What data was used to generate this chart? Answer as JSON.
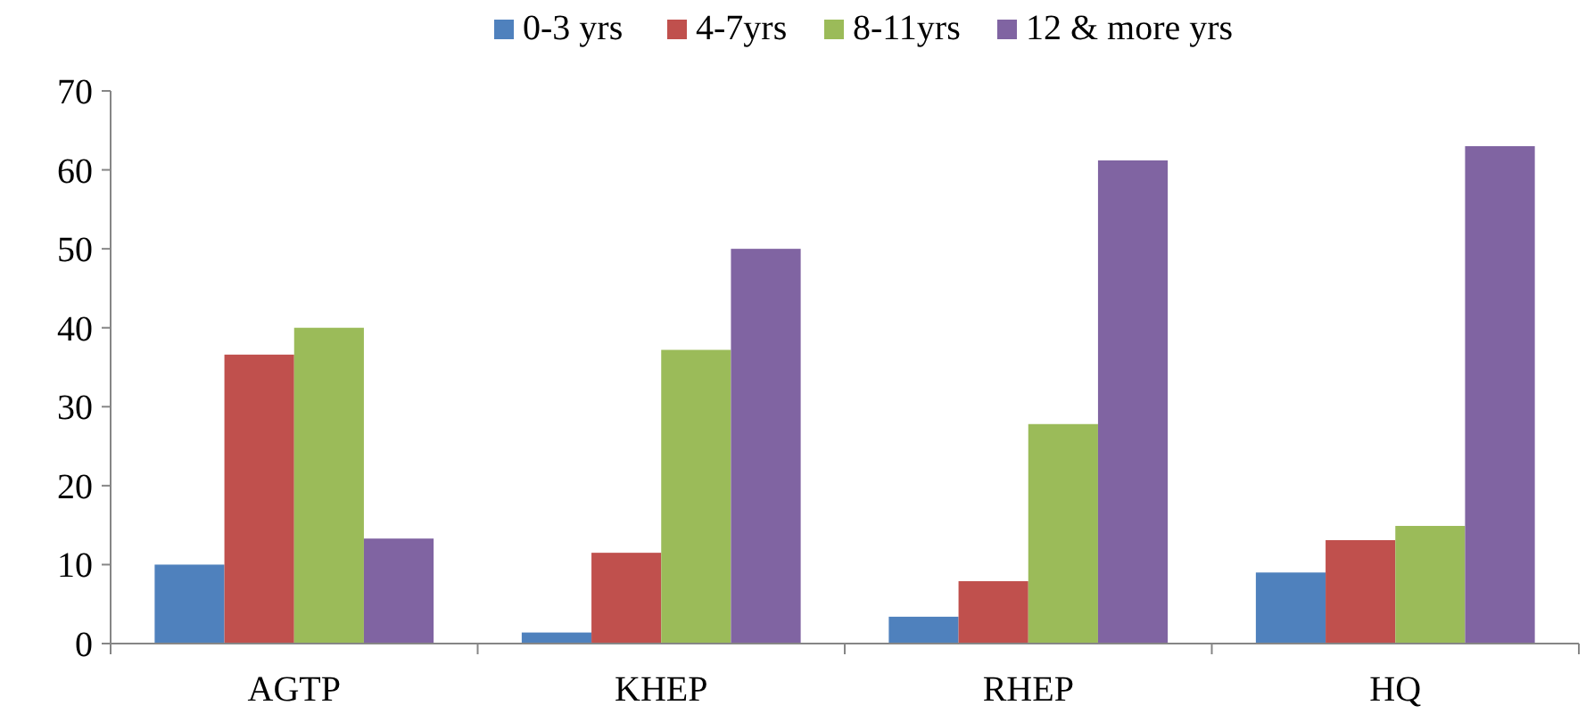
{
  "chart_data": {
    "type": "bar",
    "categories": [
      "AGTP",
      "KHEP",
      "RHEP",
      "HQ"
    ],
    "series": [
      {
        "name": "0-3 yrs",
        "color": "#4f81bd",
        "values": [
          10,
          1.4,
          3.4,
          9
        ]
      },
      {
        "name": "4-7yrs",
        "color": "#c0504d",
        "values": [
          36.6,
          11.5,
          7.9,
          13.1
        ]
      },
      {
        "name": "8-11yrs",
        "color": "#9bbb59",
        "values": [
          40,
          37.2,
          27.8,
          14.9
        ]
      },
      {
        "name": "12 & more yrs",
        "color": "#8064a2",
        "values": [
          13.3,
          50,
          61.2,
          63
        ]
      }
    ],
    "ylim": [
      0,
      70
    ],
    "yticks": [
      0,
      10,
      20,
      30,
      40,
      50,
      60,
      70
    ],
    "grid": false,
    "legend": "top"
  }
}
